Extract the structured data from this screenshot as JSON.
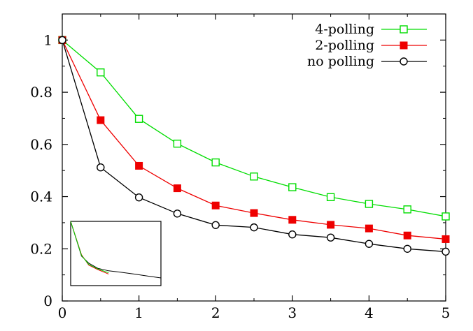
{
  "chart_data": {
    "type": "line",
    "title": "",
    "xlabel": "",
    "ylabel": "",
    "xlim": [
      0,
      5
    ],
    "ylim": [
      0,
      1.1
    ],
    "x_ticks": [
      "0",
      "1",
      "2",
      "3",
      "4",
      "5"
    ],
    "y_ticks": [
      "0",
      "0.2",
      "0.4",
      "0.6",
      "0.8",
      "1"
    ],
    "grid": false,
    "legend_position": "top-right",
    "x": [
      0,
      0.5,
      1,
      1.5,
      2,
      2.5,
      3,
      3.5,
      4,
      4.5,
      5
    ],
    "series": [
      {
        "name": "4-polling",
        "color": "#00dd00",
        "marker": "open-square",
        "values": [
          1.0,
          0.876,
          0.698,
          0.603,
          0.531,
          0.477,
          0.436,
          0.398,
          0.372,
          0.351,
          0.324
        ]
      },
      {
        "name": "2-polling",
        "color": "#ee0000",
        "marker": "filled-square",
        "values": [
          1.0,
          0.693,
          0.518,
          0.432,
          0.366,
          0.337,
          0.311,
          0.292,
          0.278,
          0.251,
          0.237
        ]
      },
      {
        "name": "no polling",
        "color": "#000000",
        "marker": "open-circle",
        "values": [
          1.0,
          0.512,
          0.397,
          0.335,
          0.291,
          0.282,
          0.255,
          0.243,
          0.219,
          0.2,
          0.189
        ]
      }
    ],
    "inset": {
      "description_color_order": [
        "#00dd00",
        "#ee0000",
        "#000000"
      ],
      "x": [
        0,
        0.12,
        0.2,
        0.3,
        0.42,
        0.55,
        0.7,
        0.85,
        1.0
      ],
      "series": [
        {
          "color": "#000000",
          "values": [
            1.0,
            0.46,
            0.35,
            0.27,
            0.23,
            0.21,
            0.18,
            0.15,
            0.12
          ]
        },
        {
          "color": "#ee0000",
          "values": [
            1.0,
            0.48,
            0.32,
            0.25,
            0.18,
            null,
            null,
            null,
            null
          ]
        },
        {
          "color": "#00dd00",
          "values": [
            1.0,
            0.47,
            0.33,
            0.26,
            0.2,
            null,
            null,
            null,
            null
          ]
        }
      ]
    }
  }
}
